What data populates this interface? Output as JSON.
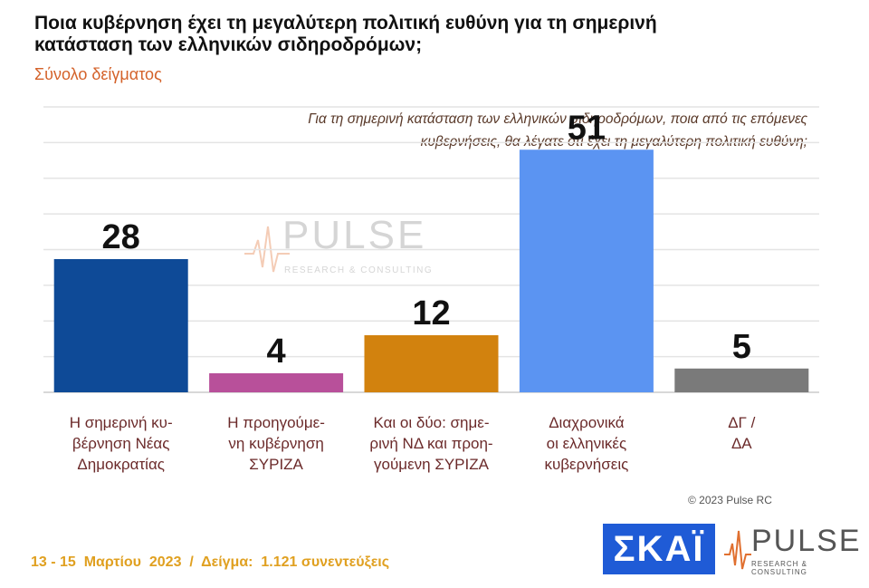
{
  "title": "Ποια κυβέρνηση έχει τη μεγαλύτερη πολιτική ευθύνη για τη σημερινή κατάσταση των ελληνικών σιδηροδρόμων;",
  "subtitle": "Σύνολο δείγματος",
  "question": "Για τη σημερινή κατάσταση των ελληνικών σιδηροδρόμων, ποια από τις επόμενες κυβερνήσεις, θα λέγατε ότι έχει τη μεγαλύτερη πολιτική ευθύνη;",
  "copyright": "© 2023 Pulse RC",
  "footer": "13 - 15  Μαρτίου  2023  /  Δείγμα:  1.121 συνεντεύξεις",
  "logos": {
    "skai": "ΣΚΑΪ",
    "pulse": "PULSE",
    "pulse_sub": "RESEARCH & CONSULTING"
  },
  "chart_data": {
    "type": "bar",
    "categories": [
      [
        "Η σημερινή κυ-",
        "βέρνηση Νέας",
        "Δημοκρατίας"
      ],
      [
        "Η προηγούμε-",
        "νη κυβέρνηση",
        "ΣΥΡΙΖΑ"
      ],
      [
        "Και οι δύο: σημε-",
        "ρινή ΝΔ και προη-",
        "γούμενη ΣΥΡΙΖΑ"
      ],
      [
        "Διαχρονικά",
        "οι ελληνικές",
        "κυβερνήσεις"
      ],
      [
        "ΔΓ /",
        "ΔΑ"
      ]
    ],
    "values": [
      28,
      4,
      12,
      51,
      5
    ],
    "colors": [
      "#0e4a97",
      "#b8509a",
      "#d2820e",
      "#5b94f2",
      "#7a7a7a"
    ],
    "ylim": [
      0,
      60
    ],
    "grid": true
  }
}
